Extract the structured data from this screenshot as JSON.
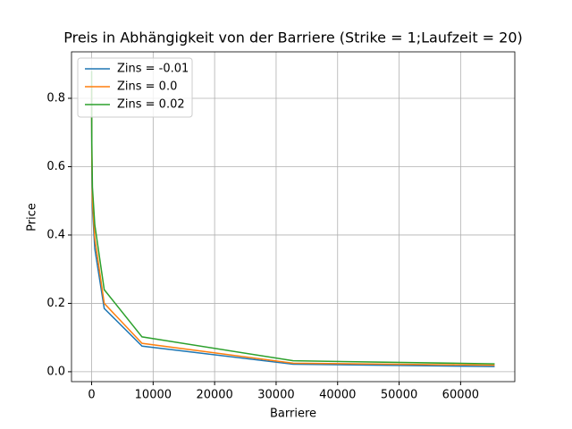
{
  "chart_data": {
    "type": "line",
    "title": "Preis in Abhängigkeit von der Barriere (Strike = 1;Laufzeit = 20)",
    "x_label": "Barriere",
    "y_label": "Price",
    "x": [
      2,
      8,
      32,
      128,
      512,
      2048,
      8192,
      32768,
      65536
    ],
    "series": [
      {
        "name": "Zins = -0.01",
        "color": "#1f77b4",
        "values": [
          0.8,
          0.7,
          0.6,
          0.48,
          0.36,
          0.185,
          0.075,
          0.022,
          0.015
        ]
      },
      {
        "name": "Zins = 0.0",
        "color": "#ff7f0e",
        "values": [
          0.84,
          0.74,
          0.63,
          0.5,
          0.39,
          0.2,
          0.083,
          0.025,
          0.019
        ]
      },
      {
        "name": "Zins = 0.02",
        "color": "#2ca02c",
        "values": [
          0.88,
          0.78,
          0.67,
          0.54,
          0.43,
          0.24,
          0.102,
          0.032,
          0.023
        ]
      }
    ],
    "xlim": [
      -3275,
      68813
    ],
    "ylim": [
      -0.029,
      0.936
    ],
    "xticks": [
      0,
      10000,
      20000,
      30000,
      40000,
      50000,
      60000
    ],
    "yticks": [
      {
        "value": 0,
        "label": "0.0"
      },
      0.2,
      0.4,
      0.6,
      0.8
    ],
    "grid": true,
    "legend": "upper-left"
  }
}
